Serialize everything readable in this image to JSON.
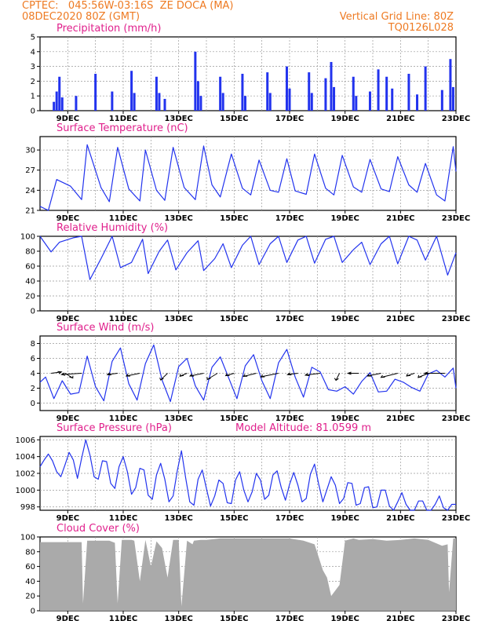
{
  "header": {
    "line1": "CPTEC:   045:56W-03:16S  ZE DOCA (MA)",
    "line2": "08DEC2020 80Z (GMT)",
    "right1": "Vertical Grid Line: 80Z",
    "right2": "TQ0126L028"
  },
  "x_ticks": [
    "9DEC",
    "11DEC",
    "13DEC",
    "15DEC",
    "17DEC",
    "19DEC",
    "21DEC",
    "23DEC"
  ],
  "model_altitude_label": "Model Altitude: 81.0599 m",
  "colors": {
    "line": "#2233ee",
    "bars": "#2233ee",
    "cloud": "#aaaaaa",
    "title": "#e0208c",
    "header": "#ee7a22"
  },
  "chart_data": [
    {
      "type": "bar",
      "title": "Precipitation (mm/h)",
      "ylim": [
        0,
        5
      ],
      "yticks": [
        "0",
        "1",
        "2",
        "3",
        "4",
        "5"
      ],
      "x": [
        8.5,
        8.6,
        8.7,
        8.8,
        9.3,
        10.0,
        10.6,
        11.3,
        11.4,
        12.2,
        12.3,
        12.5,
        13.6,
        13.7,
        13.8,
        14.5,
        14.6,
        15.3,
        15.4,
        16.2,
        16.3,
        16.9,
        17.0,
        17.7,
        17.8,
        18.3,
        18.5,
        18.6,
        19.3,
        19.4,
        19.9,
        20.2,
        20.5,
        20.7,
        21.3,
        21.6,
        21.9,
        22.5,
        22.8,
        22.9
      ],
      "values": [
        0.6,
        1.3,
        2.3,
        0.9,
        1.0,
        2.5,
        1.3,
        2.7,
        1.2,
        2.3,
        1.2,
        0.8,
        4.0,
        2.0,
        1.0,
        2.3,
        1.2,
        2.5,
        1.0,
        2.6,
        1.2,
        3.0,
        1.5,
        2.6,
        1.2,
        2.2,
        3.3,
        1.6,
        2.3,
        1.0,
        1.3,
        2.8,
        2.3,
        1.5,
        2.5,
        1.1,
        3.0,
        1.4,
        3.5,
        1.6
      ]
    },
    {
      "type": "line",
      "title": "Surface Temperature (nC)",
      "ylim": [
        21,
        32
      ],
      "yticks": [
        "21",
        "24",
        "27",
        "30"
      ],
      "x": [
        8.0,
        8.3,
        8.6,
        9.1,
        9.5,
        9.7,
        10.2,
        10.5,
        10.8,
        11.2,
        11.6,
        11.8,
        12.2,
        12.5,
        12.8,
        13.2,
        13.6,
        13.9,
        14.2,
        14.5,
        14.9,
        15.3,
        15.6,
        15.9,
        16.3,
        16.6,
        16.9,
        17.2,
        17.6,
        17.9,
        18.3,
        18.6,
        18.9,
        19.3,
        19.6,
        19.9,
        20.3,
        20.6,
        20.9,
        21.3,
        21.6,
        21.9,
        22.3,
        22.6,
        22.9,
        23.0
      ],
      "values": [
        21.6,
        20.9,
        25.6,
        24.6,
        22.6,
        30.8,
        24.4,
        22.3,
        30.4,
        24.2,
        22.4,
        30.0,
        24.0,
        22.5,
        30.4,
        24.4,
        22.6,
        30.6,
        24.8,
        23.0,
        29.4,
        24.3,
        23.3,
        28.5,
        24.0,
        23.7,
        28.7,
        23.9,
        23.4,
        29.4,
        24.3,
        23.3,
        29.2,
        24.5,
        23.7,
        28.6,
        24.2,
        23.8,
        29.0,
        24.8,
        23.7,
        28.0,
        23.3,
        22.4,
        30.5,
        26.8
      ]
    },
    {
      "type": "line",
      "title": "Relative Humidity (%)",
      "ylim": [
        0,
        100
      ],
      "yticks": [
        "0",
        "20",
        "40",
        "60",
        "80",
        "100"
      ],
      "x": [
        8.0,
        8.4,
        8.7,
        9.2,
        9.5,
        9.8,
        10.2,
        10.6,
        10.9,
        11.3,
        11.7,
        11.9,
        12.3,
        12.6,
        12.9,
        13.3,
        13.7,
        13.9,
        14.3,
        14.6,
        14.9,
        15.3,
        15.6,
        15.9,
        16.3,
        16.6,
        16.9,
        17.3,
        17.6,
        17.9,
        18.3,
        18.6,
        18.9,
        19.3,
        19.6,
        19.9,
        20.3,
        20.6,
        20.9,
        21.3,
        21.6,
        21.9,
        22.3,
        22.7,
        23.0
      ],
      "values": [
        100,
        79,
        92,
        98,
        100,
        42,
        70,
        100,
        58,
        65,
        96,
        50,
        80,
        95,
        55,
        78,
        94,
        54,
        70,
        90,
        58,
        88,
        100,
        62,
        90,
        100,
        65,
        95,
        100,
        64,
        96,
        100,
        65,
        82,
        92,
        62,
        90,
        100,
        63,
        100,
        95,
        68,
        100,
        48,
        78
      ]
    },
    {
      "type": "line",
      "title": "Surface Wind (m/s)",
      "ylim": [
        -1,
        9
      ],
      "yticks": [
        "0",
        "2",
        "4",
        "6",
        "8"
      ],
      "x": [
        8.0,
        8.2,
        8.5,
        8.8,
        9.1,
        9.4,
        9.7,
        10.0,
        10.3,
        10.6,
        10.9,
        11.2,
        11.5,
        11.8,
        12.1,
        12.4,
        12.7,
        13.0,
        13.3,
        13.6,
        13.9,
        14.2,
        14.5,
        14.8,
        15.1,
        15.4,
        15.7,
        16.0,
        16.3,
        16.6,
        16.9,
        17.2,
        17.5,
        17.8,
        18.1,
        18.4,
        18.7,
        19.0,
        19.3,
        19.6,
        19.9,
        20.2,
        20.5,
        20.8,
        21.1,
        21.4,
        21.7,
        22.0,
        22.3,
        22.6,
        22.9,
        23.0
      ],
      "values": [
        2.8,
        3.5,
        0.6,
        3.0,
        1.2,
        1.4,
        6.3,
        2.2,
        0.3,
        5.6,
        7.4,
        2.6,
        0.4,
        5.3,
        7.8,
        3.1,
        0.2,
        4.9,
        6.0,
        2.3,
        0.4,
        4.8,
        6.2,
        3.4,
        0.6,
        5.0,
        6.5,
        3.0,
        0.6,
        5.4,
        7.2,
        3.5,
        0.8,
        4.8,
        4.2,
        1.8,
        1.6,
        2.2,
        1.2,
        2.9,
        4.1,
        1.5,
        1.6,
        3.2,
        2.8,
        2.1,
        1.6,
        3.9,
        4.4,
        3.5,
        4.7,
        2.0
      ],
      "arrows_x": [
        8.4,
        8.9,
        9.5,
        10.8,
        11.6,
        12.6,
        13.3,
        13.9,
        14.4,
        15.0,
        15.8,
        16.6,
        17.3,
        18.1,
        18.8,
        19.5,
        20.3,
        20.9,
        21.5,
        22.0,
        22.6
      ],
      "arrows_dir": [
        20,
        300,
        190,
        200,
        210,
        250,
        230,
        210,
        240,
        220,
        215,
        210,
        200,
        200,
        260,
        180,
        210,
        215,
        225,
        230,
        180
      ]
    },
    {
      "type": "line",
      "title": "Surface Pressure (hPa)",
      "ylim": [
        997.6,
        1006.4
      ],
      "yticks": [
        "998",
        "1000",
        "1002",
        "1004",
        "1006"
      ],
      "x": [
        8.0,
        8.15,
        8.3,
        8.45,
        8.6,
        8.75,
        8.9,
        9.05,
        9.2,
        9.35,
        9.5,
        9.65,
        9.8,
        9.95,
        10.1,
        10.25,
        10.4,
        10.55,
        10.7,
        10.85,
        11.0,
        11.15,
        11.3,
        11.45,
        11.6,
        11.75,
        11.9,
        12.05,
        12.2,
        12.35,
        12.5,
        12.65,
        12.8,
        12.95,
        13.1,
        13.25,
        13.4,
        13.55,
        13.7,
        13.85,
        14.0,
        14.15,
        14.3,
        14.45,
        14.6,
        14.75,
        14.9,
        15.05,
        15.2,
        15.35,
        15.5,
        15.65,
        15.8,
        15.95,
        16.1,
        16.25,
        16.4,
        16.55,
        16.7,
        16.85,
        17.0,
        17.15,
        17.3,
        17.45,
        17.6,
        17.75,
        17.9,
        18.05,
        18.2,
        18.35,
        18.5,
        18.65,
        18.8,
        18.95,
        19.1,
        19.25,
        19.4,
        19.55,
        19.7,
        19.85,
        20.0,
        20.15,
        20.3,
        20.45,
        20.6,
        20.75,
        20.9,
        21.05,
        21.2,
        21.35,
        21.5,
        21.65,
        21.8,
        21.95,
        22.1,
        22.25,
        22.4,
        22.55,
        22.7,
        22.85,
        23.0
      ],
      "values": [
        1002.8,
        1003.6,
        1004.3,
        1003.5,
        1002.2,
        1001.6,
        1003.0,
        1004.5,
        1003.6,
        1001.4,
        1003.8,
        1006.0,
        1004.2,
        1001.6,
        1001.3,
        1003.5,
        1003.4,
        1000.8,
        1000.2,
        1002.8,
        1004.0,
        1002.2,
        999.5,
        1000.3,
        1002.6,
        1002.4,
        999.4,
        998.9,
        1001.8,
        1003.2,
        1001.3,
        998.6,
        999.3,
        1002.3,
        1004.7,
        1001.5,
        998.6,
        998.2,
        1001.3,
        1002.4,
        1000.2,
        998.1,
        999.3,
        1001.2,
        1000.8,
        998.5,
        998.4,
        1001.2,
        1002.2,
        1000.0,
        998.6,
        999.8,
        1002.0,
        1001.2,
        998.9,
        999.4,
        1001.8,
        1002.3,
        1000.3,
        998.8,
        1000.7,
        1002.1,
        1000.6,
        998.6,
        999.0,
        1001.9,
        1003.1,
        1000.7,
        998.6,
        1000.1,
        1001.6,
        1000.6,
        998.4,
        999.0,
        1000.9,
        1000.8,
        998.2,
        998.4,
        1000.3,
        1000.4,
        997.9,
        998.0,
        1000.0,
        1000.0,
        998.1,
        997.4,
        998.6,
        999.7,
        998.3,
        997.0,
        997.4,
        998.7,
        998.7,
        997.4,
        997.2,
        998.3,
        999.3,
        997.9,
        996.8,
        998.3,
        998.3
      ]
    },
    {
      "type": "area",
      "title": "Cloud Cover (%)",
      "ylim": [
        0,
        100
      ],
      "yticks": [
        "0",
        "20",
        "40",
        "60",
        "80",
        "100"
      ],
      "x": [
        8.0,
        8.5,
        8.9,
        9.1,
        9.3,
        9.5,
        9.55,
        9.7,
        9.9,
        10.2,
        10.5,
        10.7,
        10.8,
        10.95,
        11.3,
        11.4,
        11.6,
        11.8,
        12.0,
        12.2,
        12.4,
        12.6,
        12.8,
        13.0,
        13.1,
        13.3,
        13.5,
        13.55,
        13.8,
        14.0,
        14.5,
        15.0,
        15.5,
        16.0,
        16.5,
        17.0,
        17.5,
        17.9,
        18.2,
        18.35,
        18.5,
        18.8,
        19.0,
        19.3,
        19.5,
        20.0,
        20.5,
        21.0,
        21.5,
        22.0,
        22.5,
        22.7,
        22.75,
        22.9,
        23.0
      ],
      "values": [
        93,
        93,
        93,
        93,
        93,
        93,
        10,
        95,
        95,
        95,
        95,
        92,
        10,
        96,
        96,
        95,
        40,
        96,
        60,
        94,
        85,
        45,
        96,
        96,
        6,
        95,
        90,
        95,
        96,
        96,
        98,
        98,
        98,
        98,
        98,
        98,
        95,
        90,
        55,
        45,
        20,
        35,
        95,
        98,
        96,
        97,
        95,
        96,
        98,
        96,
        88,
        90,
        25,
        98,
        98
      ]
    }
  ]
}
